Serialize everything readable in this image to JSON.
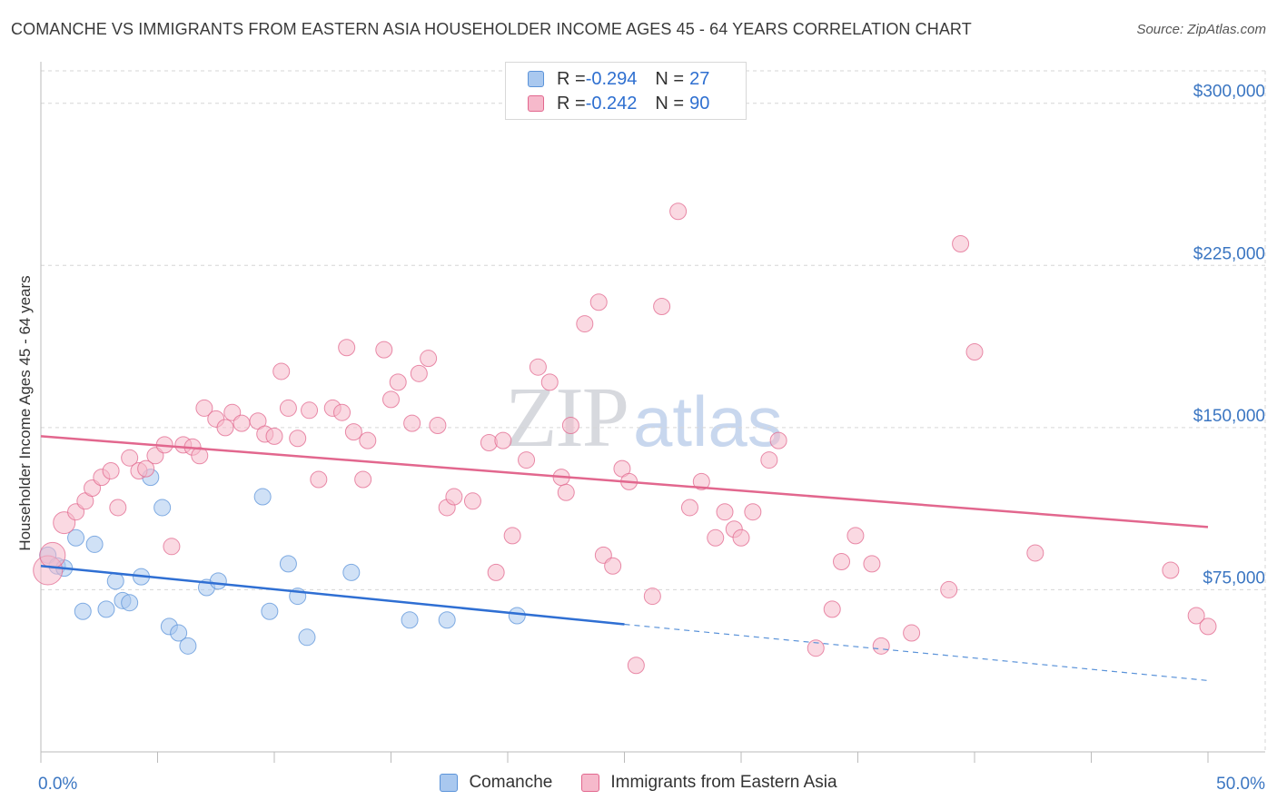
{
  "title": "COMANCHE VS IMMIGRANTS FROM EASTERN ASIA HOUSEHOLDER INCOME AGES 45 - 64 YEARS CORRELATION CHART",
  "source": "Source: ZipAtlas.com",
  "watermark": {
    "zip": "ZIP",
    "atlas": "atlas"
  },
  "stats": [
    {
      "r_label": "R = ",
      "r_value": "-0.294",
      "n_label": "N = ",
      "n_value": "27",
      "color": "#a9c8ef"
    },
    {
      "r_label": "R = ",
      "r_value": "-0.242",
      "n_label": "N = ",
      "n_value": "90",
      "color": "#f6b9cb"
    }
  ],
  "legend": [
    {
      "label": "Comanche",
      "color": "#a9c8ef"
    },
    {
      "label": "Immigrants from Eastern Asia",
      "color": "#f6b9cb"
    }
  ],
  "chart_data": {
    "type": "scatter",
    "title": "COMANCHE VS IMMIGRANTS FROM EASTERN ASIA HOUSEHOLDER INCOME AGES 45 - 64 YEARS CORRELATION CHART",
    "xlabel": "",
    "ylabel": "Householder Income Ages 45 - 64 years",
    "xlim": [
      0,
      50
    ],
    "ylim": [
      0,
      315000
    ],
    "x_tick_labels": [
      "0.0%",
      "50.0%"
    ],
    "y_ticks": [
      75000,
      150000,
      225000,
      300000
    ],
    "y_tick_labels": [
      "$75,000",
      "$150,000",
      "$225,000",
      "$300,000"
    ],
    "grid": true,
    "legend_position": "bottom",
    "series": [
      {
        "name": "Comanche",
        "color": "#5b93d9",
        "fill": "#a9c8ef",
        "r": -0.294,
        "n": 27,
        "trend": {
          "x0": 0,
          "y0": 86000,
          "x1": 25,
          "y1": 59000,
          "dash_to_x": 50,
          "dash_to_y": 33000
        },
        "points": [
          [
            0.3,
            91000
          ],
          [
            0.7,
            86000
          ],
          [
            1.0,
            85000
          ],
          [
            1.5,
            99000
          ],
          [
            1.8,
            65000
          ],
          [
            2.3,
            96000
          ],
          [
            2.8,
            66000
          ],
          [
            3.2,
            79000
          ],
          [
            3.5,
            70000
          ],
          [
            3.8,
            69000
          ],
          [
            4.3,
            81000
          ],
          [
            4.7,
            127000
          ],
          [
            5.2,
            113000
          ],
          [
            5.5,
            58000
          ],
          [
            5.9,
            55000
          ],
          [
            6.3,
            49000
          ],
          [
            7.1,
            76000
          ],
          [
            7.6,
            79000
          ],
          [
            9.5,
            118000
          ],
          [
            9.8,
            65000
          ],
          [
            10.6,
            87000
          ],
          [
            11.0,
            72000
          ],
          [
            11.4,
            53000
          ],
          [
            13.3,
            83000
          ],
          [
            15.8,
            61000
          ],
          [
            17.4,
            61000
          ],
          [
            20.4,
            63000
          ]
        ]
      },
      {
        "name": "Immigrants from Eastern Asia",
        "color": "#e2678e",
        "fill": "#f6b9cb",
        "r": -0.242,
        "n": 90,
        "trend": {
          "x0": 0,
          "y0": 146000,
          "x1": 50,
          "y1": 104000
        },
        "points": [
          [
            0.3,
            84000
          ],
          [
            0.5,
            91000
          ],
          [
            1.0,
            106000
          ],
          [
            1.5,
            111000
          ],
          [
            1.9,
            116000
          ],
          [
            2.2,
            122000
          ],
          [
            2.6,
            127000
          ],
          [
            3.0,
            130000
          ],
          [
            3.3,
            113000
          ],
          [
            3.8,
            136000
          ],
          [
            4.2,
            130000
          ],
          [
            4.5,
            131000
          ],
          [
            4.9,
            137000
          ],
          [
            5.3,
            142000
          ],
          [
            5.6,
            95000
          ],
          [
            6.1,
            142000
          ],
          [
            6.5,
            141000
          ],
          [
            6.8,
            137000
          ],
          [
            7.0,
            159000
          ],
          [
            7.5,
            154000
          ],
          [
            7.9,
            150000
          ],
          [
            8.2,
            157000
          ],
          [
            8.6,
            152000
          ],
          [
            9.3,
            153000
          ],
          [
            9.6,
            147000
          ],
          [
            10.0,
            146000
          ],
          [
            10.3,
            176000
          ],
          [
            10.6,
            159000
          ],
          [
            11.0,
            145000
          ],
          [
            11.5,
            158000
          ],
          [
            11.9,
            126000
          ],
          [
            12.5,
            159000
          ],
          [
            12.9,
            157000
          ],
          [
            13.1,
            187000
          ],
          [
            13.4,
            148000
          ],
          [
            13.8,
            126000
          ],
          [
            14.0,
            144000
          ],
          [
            14.7,
            186000
          ],
          [
            15.0,
            163000
          ],
          [
            15.3,
            171000
          ],
          [
            15.9,
            152000
          ],
          [
            16.2,
            175000
          ],
          [
            16.6,
            182000
          ],
          [
            17.0,
            151000
          ],
          [
            17.4,
            113000
          ],
          [
            17.7,
            118000
          ],
          [
            18.5,
            116000
          ],
          [
            19.2,
            143000
          ],
          [
            19.5,
            83000
          ],
          [
            19.8,
            144000
          ],
          [
            20.2,
            100000
          ],
          [
            20.8,
            135000
          ],
          [
            21.3,
            178000
          ],
          [
            21.8,
            171000
          ],
          [
            22.3,
            127000
          ],
          [
            22.5,
            120000
          ],
          [
            22.7,
            151000
          ],
          [
            23.3,
            198000
          ],
          [
            23.9,
            208000
          ],
          [
            24.1,
            91000
          ],
          [
            24.5,
            86000
          ],
          [
            24.9,
            131000
          ],
          [
            25.2,
            125000
          ],
          [
            25.5,
            40000
          ],
          [
            26.2,
            72000
          ],
          [
            26.6,
            206000
          ],
          [
            27.3,
            250000
          ],
          [
            27.8,
            113000
          ],
          [
            28.3,
            125000
          ],
          [
            28.9,
            99000
          ],
          [
            29.3,
            111000
          ],
          [
            29.7,
            103000
          ],
          [
            30.0,
            99000
          ],
          [
            30.5,
            111000
          ],
          [
            31.2,
            135000
          ],
          [
            31.6,
            144000
          ],
          [
            33.2,
            48000
          ],
          [
            33.9,
            66000
          ],
          [
            34.3,
            88000
          ],
          [
            34.9,
            100000
          ],
          [
            35.6,
            87000
          ],
          [
            36.0,
            49000
          ],
          [
            37.3,
            55000
          ],
          [
            38.9,
            75000
          ],
          [
            39.4,
            235000
          ],
          [
            40.0,
            185000
          ],
          [
            42.6,
            92000
          ],
          [
            48.4,
            84000
          ],
          [
            49.5,
            63000
          ],
          [
            50.0,
            58000
          ]
        ]
      }
    ]
  }
}
